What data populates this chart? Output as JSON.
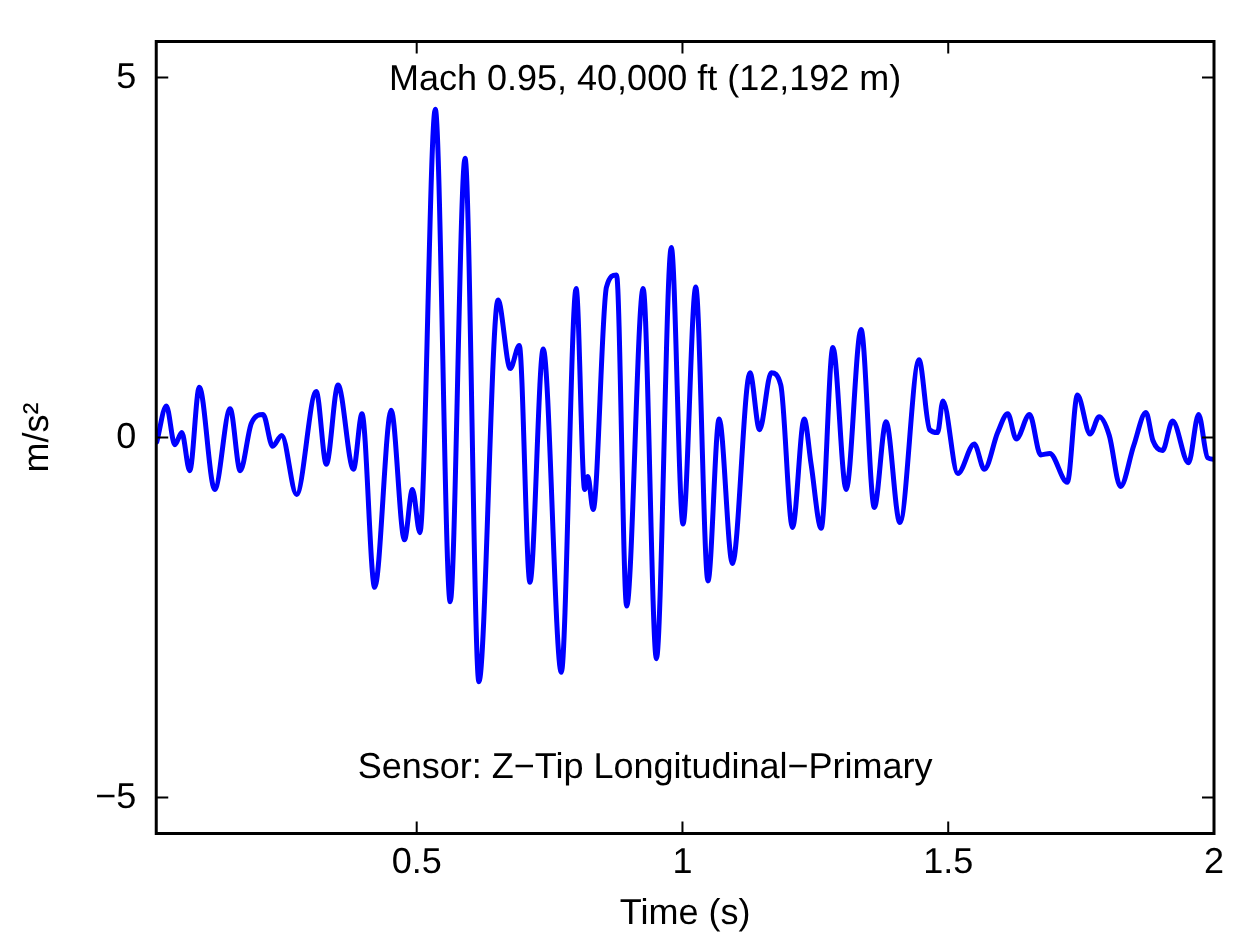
{
  "chart_data": {
    "type": "line",
    "title": "Mach 0.95, 40,000 ft (12,192 m)",
    "xlabel": "Time (s)",
    "ylabel": "m/s²",
    "annotations": [
      "Sensor: Z−Tip Longitudinal−Primary"
    ],
    "xlim": [
      0.01,
      2
    ],
    "ylim": [
      -5.5,
      5.5
    ],
    "xticks": [
      0.5,
      1,
      1.5,
      2
    ],
    "yticks": [
      {
        "value": -5,
        "label": "−5"
      },
      0,
      5
    ],
    "grid": false,
    "legend": false,
    "marker": "none",
    "line_style": "solid",
    "series": [
      {
        "color": "#0000ff",
        "x": [
          0.011,
          0.029,
          0.045,
          0.058,
          0.073,
          0.091,
          0.12,
          0.149,
          0.168,
          0.189,
          0.211,
          0.229,
          0.246,
          0.274,
          0.311,
          0.33,
          0.352,
          0.381,
          0.397,
          0.421,
          0.452,
          0.477,
          0.492,
          0.506,
          0.535,
          0.563,
          0.591,
          0.617,
          0.653,
          0.676,
          0.693,
          0.713,
          0.738,
          0.772,
          0.8,
          0.816,
          0.822,
          0.832,
          0.857,
          0.876,
          0.895,
          0.926,
          0.951,
          0.979,
          1.001,
          1.025,
          1.048,
          1.069,
          1.094,
          1.127,
          1.145,
          1.167,
          1.185,
          1.207,
          1.229,
          1.242,
          1.261,
          1.283,
          1.308,
          1.336,
          1.361,
          1.383,
          1.409,
          1.445,
          1.465,
          1.48,
          1.49,
          1.518,
          1.549,
          1.568,
          1.593,
          1.612,
          1.628,
          1.653,
          1.674,
          1.691,
          1.724,
          1.743,
          1.767,
          1.784,
          1.803,
          1.824,
          1.849,
          1.872,
          1.885,
          1.903,
          1.922,
          1.952,
          1.971,
          1.988,
          2.0
        ],
        "values": [
          -0.06,
          0.44,
          -0.1,
          0.07,
          -0.46,
          0.7,
          -0.72,
          0.4,
          -0.46,
          0.2,
          0.32,
          -0.12,
          0.03,
          -0.79,
          0.64,
          -0.37,
          0.73,
          -0.44,
          0.33,
          -2.08,
          0.38,
          -1.42,
          -0.72,
          -1.32,
          4.56,
          -2.28,
          3.88,
          -3.39,
          1.91,
          0.96,
          1.28,
          -2.01,
          1.23,
          -3.26,
          2.07,
          -0.72,
          -0.54,
          -1.0,
          2.09,
          2.26,
          -2.34,
          2.07,
          -3.07,
          2.64,
          -1.2,
          2.09,
          -1.99,
          0.26,
          -1.75,
          0.9,
          0.11,
          0.9,
          0.73,
          -1.25,
          0.26,
          -0.37,
          -1.26,
          1.25,
          -0.72,
          1.5,
          -0.97,
          0.22,
          -1.18,
          1.08,
          0.11,
          0.07,
          0.51,
          -0.5,
          -0.09,
          -0.44,
          0.07,
          0.33,
          -0.02,
          0.32,
          -0.24,
          -0.22,
          -0.62,
          0.59,
          0.05,
          0.29,
          0.03,
          -0.68,
          -0.11,
          0.35,
          -0.04,
          -0.18,
          0.23,
          -0.35,
          0.32,
          -0.28,
          -0.3
        ]
      }
    ]
  }
}
